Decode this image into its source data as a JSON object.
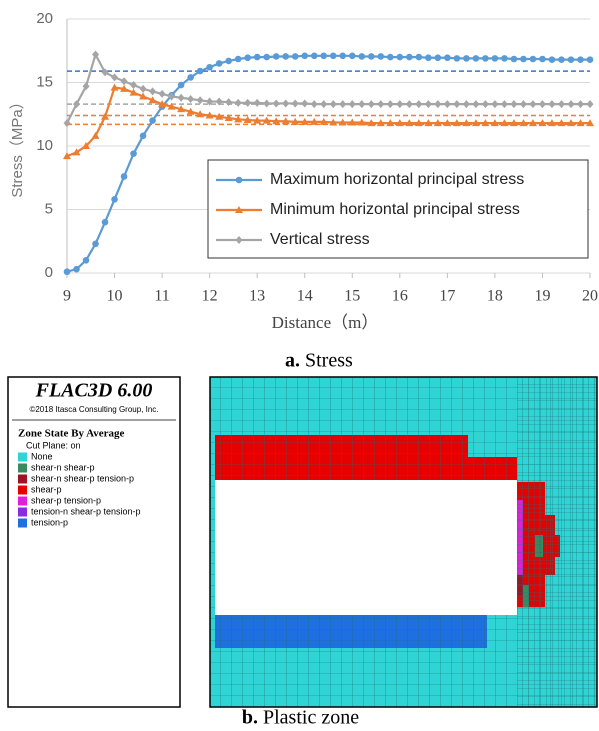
{
  "chart_data": {
    "type": "line",
    "x_label": "Distance（m）",
    "y_label": "Stress（MPa）",
    "xlim": [
      9,
      20
    ],
    "xticks": [
      9,
      10,
      11,
      12,
      13,
      14,
      15,
      16,
      17,
      18,
      19,
      20
    ],
    "ylim": [
      0,
      20
    ],
    "yticks": [
      0,
      5,
      10,
      15,
      20
    ],
    "grid": true,
    "legend_position": "right",
    "x": [
      9,
      9.2,
      9.4,
      9.6,
      9.8,
      10,
      10.2,
      10.4,
      10.6,
      10.8,
      11,
      11.2,
      11.4,
      11.6,
      11.8,
      12,
      12.2,
      12.4,
      12.6,
      12.8,
      13,
      13.2,
      13.4,
      13.6,
      13.8,
      14,
      14.2,
      14.4,
      14.6,
      14.8,
      15,
      15.2,
      15.4,
      15.6,
      15.8,
      16,
      16.2,
      16.4,
      16.6,
      16.8,
      17,
      17.2,
      17.4,
      17.6,
      17.8,
      18,
      18.2,
      18.4,
      18.6,
      18.8,
      19,
      19.2,
      19.4,
      19.6,
      19.8,
      20
    ],
    "series": [
      {
        "name": "Maximum horizontal principal stress",
        "color": "#5b9bd5",
        "marker": "circle",
        "values": [
          0.1,
          0.3,
          1.0,
          2.3,
          4.0,
          5.8,
          7.6,
          9.4,
          10.8,
          12.0,
          13.1,
          14.0,
          14.8,
          15.4,
          15.9,
          16.2,
          16.5,
          16.7,
          16.85,
          16.95,
          17.0,
          17.0,
          17.05,
          17.05,
          17.05,
          17.1,
          17.1,
          17.1,
          17.1,
          17.1,
          17.1,
          17.05,
          17.05,
          17.05,
          17.0,
          17.0,
          17.0,
          17.0,
          16.95,
          16.95,
          16.95,
          16.9,
          16.9,
          16.9,
          16.9,
          16.9,
          16.9,
          16.85,
          16.85,
          16.85,
          16.85,
          16.8,
          16.8,
          16.8,
          16.8,
          16.8
        ]
      },
      {
        "name": "Minimum horizontal principal stress",
        "color": "#ed7d31",
        "marker": "triangle",
        "values": [
          9.2,
          9.5,
          10.0,
          10.8,
          12.3,
          14.6,
          14.5,
          14.2,
          13.9,
          13.6,
          13.3,
          13.1,
          12.9,
          12.7,
          12.5,
          12.4,
          12.3,
          12.2,
          12.1,
          12.05,
          12.0,
          12.0,
          11.95,
          11.95,
          11.9,
          11.9,
          11.9,
          11.9,
          11.85,
          11.85,
          11.85,
          11.85,
          11.8,
          11.8,
          11.8,
          11.8,
          11.8,
          11.8,
          11.8,
          11.8,
          11.8,
          11.8,
          11.8,
          11.8,
          11.8,
          11.8,
          11.8,
          11.8,
          11.8,
          11.8,
          11.8,
          11.8,
          11.8,
          11.8,
          11.8,
          11.8
        ]
      },
      {
        "name": "Vertical stress",
        "color": "#a5a5a5",
        "marker": "diamond",
        "values": [
          11.8,
          13.3,
          14.7,
          17.2,
          15.8,
          15.4,
          15.1,
          14.8,
          14.5,
          14.3,
          14.1,
          13.9,
          13.8,
          13.7,
          13.6,
          13.5,
          13.5,
          13.45,
          13.4,
          13.4,
          13.4,
          13.35,
          13.35,
          13.35,
          13.35,
          13.35,
          13.3,
          13.3,
          13.3,
          13.3,
          13.3,
          13.3,
          13.3,
          13.3,
          13.3,
          13.3,
          13.3,
          13.3,
          13.3,
          13.3,
          13.3,
          13.3,
          13.3,
          13.3,
          13.3,
          13.3,
          13.3,
          13.3,
          13.3,
          13.3,
          13.3,
          13.3,
          13.3,
          13.3,
          13.3,
          13.3
        ]
      }
    ],
    "reference_lines": [
      {
        "value": 15.9,
        "color": "#2e75d6"
      },
      {
        "value": 13.3,
        "color": "#a5a5a5"
      },
      {
        "value": 12.4,
        "color": "#ed7d31"
      },
      {
        "value": 11.7,
        "color": "#ed7d31"
      }
    ]
  },
  "captions": {
    "a_label": "a.",
    "a_text": "Stress",
    "b_label": "b.",
    "b_text": "Plastic zone"
  },
  "flac": {
    "title": "FLAC3D 6.00",
    "copyright": "©2018 Itasca Consulting Group, Inc.",
    "heading": "Zone State By Average",
    "cut_plane": "Cut Plane: on",
    "items": [
      {
        "label": "None",
        "color": "#2fd5d5"
      },
      {
        "label": "shear-n shear-p",
        "color": "#3b8a5e"
      },
      {
        "label": "shear-n shear-p tension-p",
        "color": "#9e1424"
      },
      {
        "label": "shear-p",
        "color": "#e60000"
      },
      {
        "label": "shear-p tension-p",
        "color": "#e020d8"
      },
      {
        "label": "tension-n shear-p tension-p",
        "color": "#8a2be2"
      },
      {
        "label": "tension-p",
        "color": "#1e6fe0"
      }
    ]
  }
}
